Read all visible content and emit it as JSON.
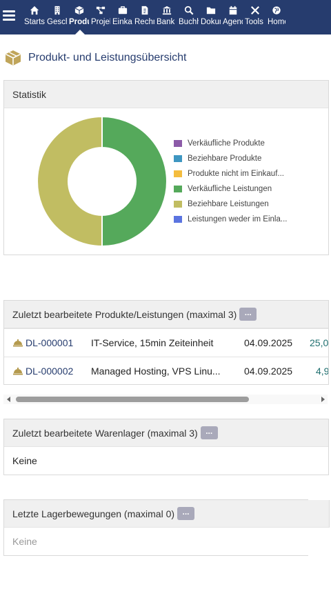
{
  "nav": {
    "items": [
      {
        "label": "Startseite",
        "icon": "home-icon"
      },
      {
        "label": "Geschäftspartner",
        "icon": "building-icon"
      },
      {
        "label": "Produkte",
        "icon": "box-icon"
      },
      {
        "label": "Projekte",
        "icon": "project-icon"
      },
      {
        "label": "Einkauf",
        "icon": "briefcase-icon"
      },
      {
        "label": "Rechnungen",
        "icon": "invoice-icon"
      },
      {
        "label": "Bank",
        "icon": "bank-icon"
      },
      {
        "label": "Buchhaltung",
        "icon": "search-icon"
      },
      {
        "label": "Dokumente",
        "icon": "folder-icon"
      },
      {
        "label": "Agenda",
        "icon": "calendar-icon"
      },
      {
        "label": "Tools",
        "icon": "tools-icon"
      },
      {
        "label": "Home",
        "icon": "globe-icon"
      }
    ]
  },
  "page": {
    "title": "Produkt- und Leistungsübersicht",
    "icon": "box-icon"
  },
  "stats": {
    "title": "Statistik",
    "legend": [
      {
        "label": "Verkäufliche Produkte",
        "color": "#8c5ba8"
      },
      {
        "label": "Beziehbare Produkte",
        "color": "#3e96c1"
      },
      {
        "label": "Produkte nicht im Einkauf...",
        "color": "#f4bd3f"
      },
      {
        "label": "Verkäufliche Leistungen",
        "color": "#55a95b"
      },
      {
        "label": "Beziehbare Leistungen",
        "color": "#c1bd62"
      },
      {
        "label": "Leistungen weder im Einla...",
        "color": "#5b74e0"
      }
    ]
  },
  "chart_data": {
    "type": "pie",
    "categories": [
      "Verkäufliche Produkte",
      "Beziehbare Produkte",
      "Produkte nicht im Einkauf...",
      "Verkäufliche Leistungen",
      "Beziehbare Leistungen",
      "Leistungen weder im Einla..."
    ],
    "values": [
      0,
      0,
      0,
      1,
      1,
      0
    ],
    "colors": [
      "#8c5ba8",
      "#3e96c1",
      "#f4bd3f",
      "#55a95b",
      "#c1bd62",
      "#5b74e0"
    ],
    "donut": true,
    "legend": "right"
  },
  "recent_products": {
    "title": "Zuletzt bearbeitete Produkte/Leistungen (maximal 3)",
    "more_label": "...",
    "rows": [
      {
        "ref": "DL-000001",
        "label": "IT-Service, 15min Zeiteinheit",
        "date": "04.09.2025",
        "amount": "25,0"
      },
      {
        "ref": "DL-000002",
        "label": "Managed Hosting, VPS Linu...",
        "date": "04.09.2025",
        "amount": "4,9"
      }
    ]
  },
  "warehouses": {
    "title": "Zuletzt bearbeitete Warenlager (maximal 3)",
    "more_label": "...",
    "empty": "Keine"
  },
  "movements": {
    "title": "Letzte Lagerbewegungen (maximal 0)",
    "more_label": "...",
    "empty": "Keine"
  }
}
